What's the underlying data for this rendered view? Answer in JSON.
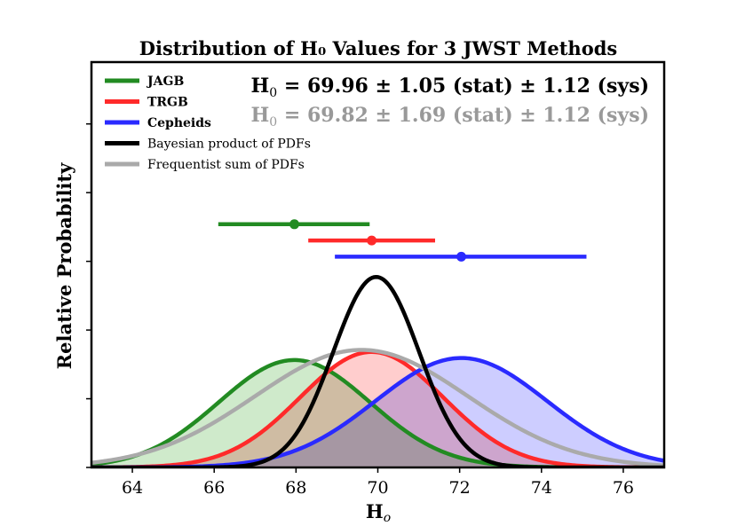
{
  "chart_data": {
    "type": "area",
    "title": "Distribution of H₀ Values for 3 JWST Methods",
    "xlabel": "H",
    "xlabel_sub": "o",
    "ylabel": "Relative Probability",
    "xlim": [
      63.0,
      77.0
    ],
    "ylim": [
      0,
      1.0
    ],
    "xticks": [
      64,
      66,
      68,
      70,
      72,
      74,
      76
    ],
    "legend_position": "upper-left",
    "grid": false,
    "series": [
      {
        "name": "JAGB",
        "kind": "gaussian",
        "mean": 67.96,
        "sigma": 1.85,
        "peak": 0.53,
        "color": "#228b22",
        "fill": "#c7e6c2",
        "bold": true
      },
      {
        "name": "TRGB",
        "kind": "gaussian",
        "mean": 69.85,
        "sigma": 1.75,
        "peak": 0.57,
        "color": "#ff2a2a",
        "fill": "#ffc4c4",
        "bold": true
      },
      {
        "name": "Cepheids",
        "kind": "gaussian",
        "mean": 72.04,
        "sigma": 2.1,
        "peak": 0.54,
        "color": "#2a2aff",
        "fill": "#c4c4ff",
        "bold": true
      },
      {
        "name": "Bayesian product of PDFs",
        "kind": "gaussian",
        "mean": 69.96,
        "sigma": 1.05,
        "peak": 0.94,
        "color": "#000000",
        "fill": null,
        "bold": false
      },
      {
        "name": "Frequentist sum of PDFs",
        "kind": "gaussian",
        "mean": 69.6,
        "sigma": 2.6,
        "peak": 0.58,
        "color": "#aaaaaa",
        "fill": null,
        "bold": false
      }
    ],
    "errorbars": [
      {
        "name": "JAGB",
        "center": 67.96,
        "low": 66.1,
        "high": 69.8,
        "y": 1.2,
        "color": "#228b22"
      },
      {
        "name": "TRGB",
        "center": 69.85,
        "low": 68.3,
        "high": 71.4,
        "y": 1.12,
        "color": "#ff2a2a"
      },
      {
        "name": "Cepheids",
        "center": 72.04,
        "low": 68.95,
        "high": 75.1,
        "y": 1.04,
        "color": "#2a2aff"
      }
    ],
    "annotations": [
      {
        "text_prefix": "H",
        "text_sub": "0",
        "text_rest": " = 69.96 ± 1.05 (stat) ± 1.12 (sys)",
        "color": "#000000"
      },
      {
        "text_prefix": "H",
        "text_sub": "0",
        "text_rest": " = 69.82 ± 1.69 (stat) ± 1.12 (sys)",
        "color": "#999999"
      }
    ]
  }
}
